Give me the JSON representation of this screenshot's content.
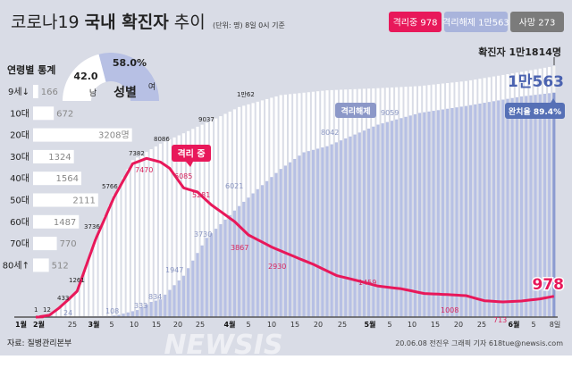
{
  "header": {
    "title_prefix": "코로나19",
    "title_bold": "국내 확진자",
    "title_suffix": "추이",
    "unit_note": "(단위: 명) 8일 0시 기준",
    "badges": [
      {
        "label": "격리중 978",
        "color": "#e8185a"
      },
      {
        "label": "격리해제 1만563",
        "color": "#a9b4dc"
      },
      {
        "label": "사망 273",
        "color": "#7b7b7b"
      }
    ]
  },
  "gender": {
    "title": "성별",
    "male_label": "남",
    "male_value": "42.0",
    "male_pct": 42.0,
    "female_label": "여",
    "female_value": "58.0%",
    "female_pct": 58.0,
    "female_color": "#b7c0e4"
  },
  "age": {
    "title": "연령별 통계",
    "groups": [
      {
        "label": "9세↓",
        "value": 166,
        "text": "166"
      },
      {
        "label": "10대",
        "value": 672,
        "text": "672"
      },
      {
        "label": "20대",
        "value": 3208,
        "text": "3208명"
      },
      {
        "label": "30대",
        "value": 1324,
        "text": "1324"
      },
      {
        "label": "40대",
        "value": 1564,
        "text": "1564"
      },
      {
        "label": "50대",
        "value": 2111,
        "text": "2111"
      },
      {
        "label": "60대",
        "value": 1487,
        "text": "1487"
      },
      {
        "label": "70대",
        "value": 770,
        "text": "770"
      },
      {
        "label": "80세↑",
        "value": 512,
        "text": "512"
      }
    ]
  },
  "chart_data": {
    "type": "bar",
    "colors": {
      "confirmed": "#ffffff",
      "released": "#b7c0e4",
      "isolating": "#e8185a",
      "background": "#d9dce6"
    },
    "series": [
      {
        "points": [
          [
            "02-18",
            31
          ],
          [
            "02-20",
            104
          ],
          [
            "02-22",
            433
          ],
          [
            "02-24",
            833
          ],
          [
            "02-26",
            1261
          ],
          [
            "03-01",
            3736
          ],
          [
            "03-05",
            5766
          ],
          [
            "03-09",
            7382
          ],
          [
            "03-15",
            8162
          ],
          [
            "03-20",
            8652
          ],
          [
            "03-23",
            8961
          ],
          [
            "03-26",
            9241
          ],
          [
            "04-01",
            9887
          ],
          [
            "04-10",
            10450
          ],
          [
            "04-20",
            10674
          ],
          [
            "05-01",
            10774
          ],
          [
            "05-10",
            10874
          ],
          [
            "05-20",
            11110
          ],
          [
            "06-01",
            11541
          ],
          [
            "06-08",
            11814
          ]
        ]
      },
      {
        "name": "격리해제",
        "points": [
          [
            "02-18",
            12
          ],
          [
            "02-26",
            24
          ],
          [
            "03-04",
            41
          ],
          [
            "03-06",
            108
          ],
          [
            "03-10",
            333
          ],
          [
            "03-13",
            714
          ],
          [
            "03-15",
            834
          ],
          [
            "03-20",
            1947
          ],
          [
            "03-25",
            3730
          ],
          [
            "04-01",
            5228
          ],
          [
            "04-05",
            6021
          ],
          [
            "04-10",
            6973
          ],
          [
            "04-15",
            7757
          ],
          [
            "04-20",
            8042
          ],
          [
            "04-25",
            8501
          ],
          [
            "05-01",
            9059
          ],
          [
            "05-10",
            9610
          ],
          [
            "05-20",
            9938
          ],
          [
            "06-01",
            10385
          ],
          [
            "06-08",
            10563
          ]
        ]
      },
      {
        "name": "격리 중",
        "points": [
          [
            "02-18",
            19
          ],
          [
            "02-20",
            88
          ],
          [
            "02-22",
            412
          ],
          [
            "02-24",
            800
          ],
          [
            "02-26",
            1220
          ],
          [
            "03-01",
            3660
          ],
          [
            "03-05",
            5650
          ],
          [
            "03-09",
            7220
          ],
          [
            "03-12",
            7470
          ],
          [
            "03-15",
            7300
          ],
          [
            "03-17",
            7000
          ],
          [
            "03-20",
            6085
          ],
          [
            "03-23",
            5884
          ],
          [
            "03-26",
            5281
          ],
          [
            "03-31",
            4500
          ],
          [
            "04-03",
            3867
          ],
          [
            "04-08",
            3300
          ],
          [
            "04-12",
            2930
          ],
          [
            "04-17",
            2484
          ],
          [
            "04-22",
            1960
          ],
          [
            "04-27",
            1690
          ],
          [
            "05-01",
            1459
          ],
          [
            "05-06",
            1332
          ],
          [
            "05-11",
            1108
          ],
          [
            "05-16",
            1060
          ],
          [
            "05-20",
            1008
          ],
          [
            "05-24",
            770
          ],
          [
            "05-28",
            713
          ],
          [
            "06-01",
            756
          ],
          [
            "06-05",
            859
          ],
          [
            "06-08",
            978
          ]
        ]
      }
    ],
    "labels": {
      "confirmed": [
        "1",
        "12",
        "433",
        "1261",
        "3736",
        "5766",
        "7382",
        "8086",
        "9037",
        "1만62"
      ],
      "released": [
        "24",
        "108",
        "333",
        "834",
        "1947",
        "3730",
        "6021",
        "8042",
        "9059"
      ],
      "isolating": [
        "7470",
        "6085",
        "5281",
        "3867",
        "2930",
        "1459",
        "1008",
        "713"
      ],
      "released_final": "1만563",
      "isolating_final": "978",
      "total": "확진자 1만1814명",
      "callout_isolating": "격리 중",
      "callout_released": "격리해제",
      "recovery_rate": "완치율 89.4%"
    },
    "x_ticks": {
      "months": [
        "1월",
        "2월",
        "3월",
        "4월",
        "5월",
        "6월"
      ],
      "days": [
        "25",
        "5",
        "10",
        "15",
        "20",
        "25",
        "5",
        "10",
        "15",
        "20",
        "25",
        "5",
        "10",
        "15",
        "20",
        "25",
        "5",
        "8일"
      ]
    }
  },
  "footer": {
    "source": "자료: 질병관리본부",
    "credit": "20.06.08 전진우 그래픽 기자 618tue@newsis.com",
    "watermark": "NEWSIS"
  }
}
